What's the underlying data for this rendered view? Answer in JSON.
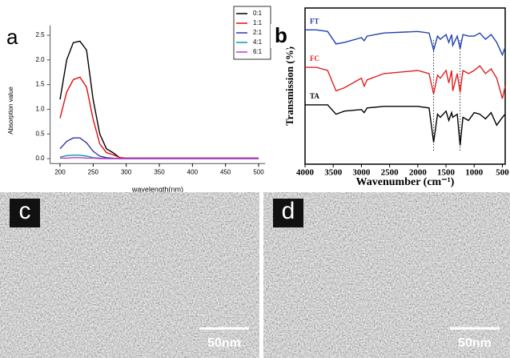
{
  "chart_data": [
    {
      "type": "line",
      "label": "a",
      "frame": "axes",
      "legend": "upper-right",
      "xlabel": "wavelength(nm)",
      "ylabel": "Absorption value",
      "xlim": [
        185,
        510
      ],
      "xticks": [
        200,
        250,
        300,
        350,
        400,
        450,
        500
      ],
      "ylim": [
        -0.1,
        2.7
      ],
      "yticks": [
        {
          "value": 0,
          "label": "0.0"
        },
        0.5,
        {
          "value": 1,
          "label": "1.0"
        },
        1.5,
        {
          "value": 2,
          "label": "2.0"
        },
        2.5
      ],
      "x": [
        200,
        210,
        220,
        230,
        240,
        250,
        260,
        270,
        280,
        290,
        300,
        350,
        400,
        450,
        500
      ],
      "series": [
        {
          "name": "0:1",
          "color": "#000000",
          "values": [
            1.2,
            2.0,
            2.35,
            2.38,
            2.2,
            1.2,
            0.5,
            0.2,
            0.12,
            0.02,
            0.01,
            0.01,
            0.01,
            0.01,
            0.01
          ]
        },
        {
          "name": "1:1",
          "color": "#e01010",
          "values": [
            0.82,
            1.35,
            1.6,
            1.65,
            1.45,
            0.8,
            0.3,
            0.12,
            0.08,
            0.02,
            0.01,
            0.01,
            0.01,
            0.01,
            0.01
          ]
        },
        {
          "name": "2:1",
          "color": "#3333aa",
          "values": [
            0.2,
            0.35,
            0.42,
            0.42,
            0.32,
            0.15,
            0.05,
            0.02,
            0.01,
            0,
            0,
            0,
            0,
            0,
            0
          ]
        },
        {
          "name": "4:1",
          "color": "#00a0a0",
          "values": [
            0.03,
            0.06,
            0.07,
            0.07,
            0.05,
            0.02,
            0.01,
            0,
            0,
            0,
            0,
            0,
            0,
            0,
            0
          ]
        },
        {
          "name": "6:1",
          "color": "#cc33cc",
          "values": [
            0.01,
            0.01,
            0.02,
            0.02,
            0.01,
            0.01,
            0,
            0,
            0,
            0,
            0,
            0,
            0,
            0,
            0
          ]
        }
      ]
    },
    {
      "type": "line",
      "label": "b",
      "frame": "box",
      "legend": "inline",
      "xlabel": "Wavenumber (cm⁻¹)",
      "ylabel": "Transmission (%)",
      "xlim": [
        4000,
        450
      ],
      "xticks": [
        4000,
        3500,
        3000,
        2500,
        2000,
        1500,
        1000,
        500
      ],
      "ylim": [
        0,
        100
      ],
      "reference_lines": [
        1720,
        1250
      ],
      "x": [
        4000,
        3800,
        3600,
        3450,
        3300,
        3000,
        2950,
        2900,
        2600,
        2000,
        1800,
        1720,
        1650,
        1600,
        1500,
        1450,
        1400,
        1380,
        1300,
        1250,
        1200,
        1100,
        1000,
        900,
        800,
        700,
        600,
        500,
        450
      ],
      "series": [
        {
          "name": "FT",
          "color": "#2040b0",
          "values": [
            86,
            86,
            85,
            77,
            78,
            81,
            79,
            82,
            84,
            85,
            84,
            73,
            82,
            80,
            83,
            78,
            83,
            76,
            82,
            74,
            83,
            82,
            82,
            84,
            80,
            83,
            78,
            70,
            75
          ]
        },
        {
          "name": "FC",
          "color": "#e02020",
          "values": [
            62,
            62,
            60,
            47,
            49,
            55,
            50,
            54,
            58,
            60,
            58,
            45,
            57,
            55,
            60,
            52,
            60,
            47,
            58,
            46,
            60,
            58,
            60,
            63,
            58,
            61,
            55,
            42,
            50
          ]
        },
        {
          "name": "TA",
          "color": "#000000",
          "values": [
            38,
            38,
            38,
            32,
            34,
            35,
            33,
            36,
            37,
            37,
            36,
            14,
            32,
            30,
            34,
            28,
            33,
            30,
            32,
            12,
            30,
            28,
            33,
            32,
            29,
            33,
            25,
            30,
            32
          ]
        }
      ]
    }
  ],
  "images": [
    {
      "label": "c",
      "scale_bar": "50nm"
    },
    {
      "label": "d",
      "scale_bar": "50nm"
    }
  ]
}
